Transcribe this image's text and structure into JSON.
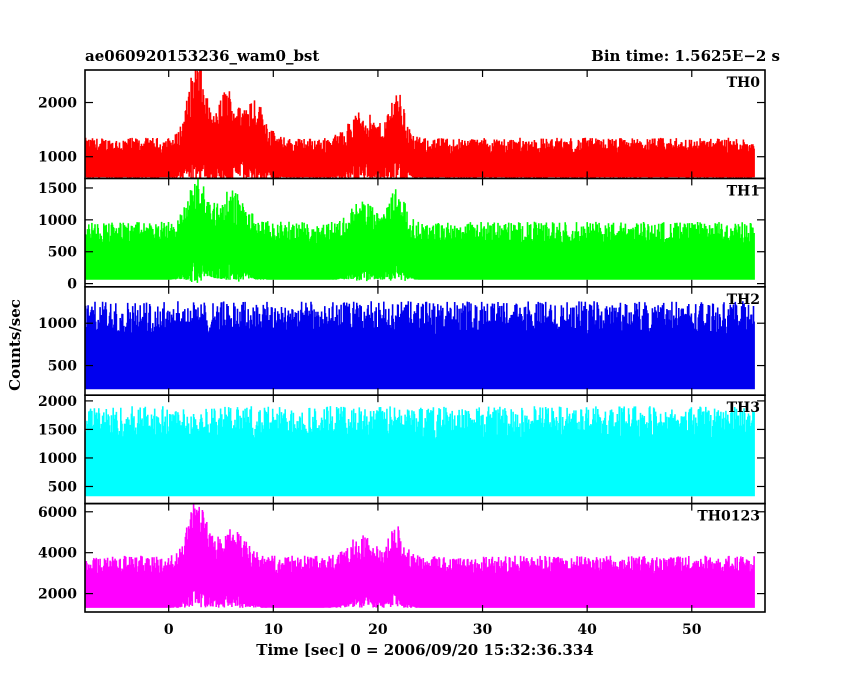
{
  "chart_data": {
    "type": "line",
    "title_left": "ae060920153236_wam0_bst",
    "title_right": "Bin time: 1.5625E−2 s",
    "xlabel": "Time [sec] 0 = 2006/09/20 15:32:36.334",
    "ylabel": "Counts/sec",
    "xlim": [
      -8,
      57
    ],
    "x_ticks": [
      0,
      10,
      20,
      30,
      40,
      50
    ],
    "x_range_data": [
      -8,
      56
    ],
    "panels": [
      {
        "name": "TH0",
        "color": "#ff0000",
        "ylim": [
          600,
          2600
        ],
        "y_ticks": [
          1000,
          2000
        ],
        "baseline": 950,
        "noise": 400,
        "floor": 620,
        "bursts": [
          [
            2.7,
            1.2,
            1400
          ],
          [
            5.5,
            1.0,
            900
          ],
          [
            8.0,
            1.5,
            800
          ],
          [
            18.5,
            1.8,
            500
          ],
          [
            21.8,
            1.0,
            900
          ]
        ]
      },
      {
        "name": "TH1",
        "color": "#00ff00",
        "ylim": [
          -50,
          1650
        ],
        "y_ticks": [
          0,
          500,
          1000,
          1500
        ],
        "baseline": 520,
        "noise": 450,
        "floor": 60,
        "bursts": [
          [
            2.7,
            1.2,
            700
          ],
          [
            6.0,
            1.8,
            500
          ],
          [
            18.5,
            1.5,
            350
          ],
          [
            21.8,
            1.0,
            550
          ]
        ]
      },
      {
        "name": "TH2",
        "color": "#0000ee",
        "ylim": [
          150,
          1430
        ],
        "y_ticks": [
          500,
          1000
        ],
        "baseline": 740,
        "noise": 520,
        "floor": 220,
        "bursts": []
      },
      {
        "name": "TH3",
        "color": "#00ffff",
        "ylim": [
          200,
          2100
        ],
        "y_ticks": [
          500,
          1000,
          1500,
          2000
        ],
        "baseline": 1150,
        "noise": 760,
        "floor": 330,
        "bursts": []
      },
      {
        "name": "TH0123",
        "color": "#ff00ff",
        "ylim": [
          1100,
          6400
        ],
        "y_ticks": [
          2000,
          4000,
          6000
        ],
        "baseline": 2700,
        "noise": 1150,
        "floor": 1300,
        "bursts": [
          [
            2.7,
            1.2,
            2700
          ],
          [
            6.0,
            1.8,
            1300
          ],
          [
            18.5,
            1.6,
            1100
          ],
          [
            21.8,
            1.0,
            1500
          ]
        ]
      }
    ]
  }
}
